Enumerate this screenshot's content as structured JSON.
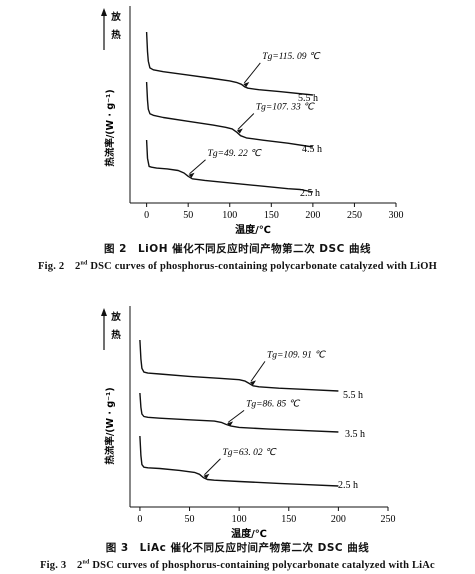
{
  "figures": [
    {
      "caption_zh": "图 2　LiOH 催化不同反应时间产物第二次 DSC 曲线",
      "caption_en_prefix": "Fig. 2　2",
      "caption_en_sup": "nd",
      "caption_en_suffix": " DSC curves of phosphorus-containing polycarbonate catalyzed with  LiOH"
    },
    {
      "caption_zh": "图 3　LiAc 催化不同反应时间产物第二次 DSC 曲线",
      "caption_en_prefix": "Fig. 3　2",
      "caption_en_sup": "nd",
      "caption_en_suffix": " DSC curves of phosphorus-containing polycarbonate catalyzed with  LiAc"
    }
  ],
  "chart_data": [
    {
      "type": "line",
      "xlabel": "温度/℃",
      "ylabel": "热流率/(W · g⁻¹)",
      "exo_label": [
        "放",
        "热"
      ],
      "xlim": [
        -20,
        300
      ],
      "xticks": [
        0,
        50,
        100,
        150,
        200,
        250,
        300
      ],
      "y_ticks_labeled": false,
      "series": [
        {
          "name": "5.5 h",
          "x": [
            0,
            1,
            2,
            4,
            8,
            20,
            50,
            80,
            100,
            108,
            114,
            118,
            122,
            135,
            160,
            200
          ],
          "y": [
            100,
            80,
            70,
            63,
            61,
            59,
            55.5,
            52,
            49.5,
            48,
            46,
            43.5,
            42,
            40.5,
            38.5,
            35
          ],
          "annotation": "Tg=115. 09 ℃",
          "annotation_x": 115.09
        },
        {
          "name": "4.5 h",
          "x": [
            0,
            1,
            2,
            4,
            8,
            20,
            50,
            80,
            95,
            103,
            108,
            113,
            120,
            140,
            170,
            200
          ],
          "y": [
            67,
            55,
            49,
            46,
            45,
            43.5,
            41,
            38.5,
            37,
            36,
            34,
            31.5,
            30,
            28.5,
            26.5,
            24
          ],
          "annotation": "Tg=107. 33 ℃",
          "annotation_x": 107.33
        },
        {
          "name": "2.5 h",
          "x": [
            0,
            1,
            3,
            6,
            12,
            25,
            38,
            45,
            50,
            55,
            70,
            100,
            140,
            170,
            185,
            200
          ],
          "y": [
            36,
            25,
            20,
            19.5,
            19,
            18.5,
            17.5,
            16,
            14,
            12.5,
            11.5,
            10,
            8,
            6.5,
            6,
            4.5
          ],
          "annotation": "Tg=49. 22 ℃",
          "annotation_x": 49.22
        }
      ]
    },
    {
      "type": "line",
      "xlabel": "温度/℃",
      "ylabel": "热流率/(W · g⁻¹)",
      "exo_label": [
        "放",
        "热"
      ],
      "xlim": [
        -10,
        250
      ],
      "xticks": [
        0,
        50,
        100,
        150,
        200,
        250
      ],
      "y_ticks_labeled": false,
      "series": [
        {
          "name": "5.5 h",
          "x": [
            0,
            1,
            2,
            4,
            8,
            20,
            50,
            80,
            100,
            106,
            110,
            114,
            120,
            140,
            170,
            200
          ],
          "y": [
            100,
            80,
            70,
            66,
            65,
            64,
            61.5,
            59.5,
            58,
            56.5,
            54,
            51.5,
            50.5,
            49,
            47.5,
            46
          ],
          "annotation": "Tg=109. 91 ℃",
          "annotation_x": 109.91
        },
        {
          "name": "3.5 h",
          "x": [
            0,
            1,
            2,
            4,
            8,
            20,
            50,
            75,
            82,
            87,
            92,
            100,
            130,
            160,
            200
          ],
          "y": [
            74,
            57,
            49,
            46,
            45,
            44,
            42,
            40.5,
            39,
            36.5,
            34.5,
            33,
            31,
            29.5,
            27.5
          ],
          "annotation": "Tg=86. 85 ℃",
          "annotation_x": 86.85
        },
        {
          "name": "2.5 h",
          "x": [
            0,
            1,
            2,
            4,
            8,
            20,
            40,
            55,
            60,
            64,
            68,
            75,
            100,
            140,
            170,
            200
          ],
          "y": [
            42,
            27,
            20,
            18,
            17.5,
            17,
            15.5,
            14,
            12.5,
            10,
            8.5,
            8,
            7,
            5.5,
            4.5,
            3.5
          ],
          "annotation": "Tg=63. 02 ℃",
          "annotation_x": 63.02
        }
      ]
    }
  ]
}
